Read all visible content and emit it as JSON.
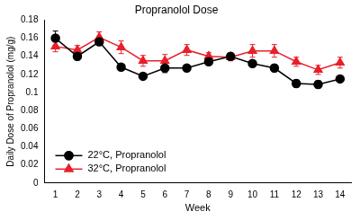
{
  "chart_data": {
    "type": "line",
    "title": "Propranolol Dose",
    "x_label": "Week",
    "y_label": "Daily Dose of Propranolol (mg/g)",
    "categories": [
      "1",
      "2",
      "3",
      "4",
      "5",
      "6",
      "7",
      "8",
      "9",
      "10",
      "11",
      "12",
      "13",
      "14"
    ],
    "series": [
      {
        "name": "22°C, Propranolol",
        "color": "#000000",
        "marker": "circle",
        "line_style": "solid",
        "values": [
          0.16,
          0.14,
          0.156,
          0.128,
          0.118,
          0.127,
          0.127,
          0.134,
          0.14,
          0.132,
          0.127,
          0.11,
          0.109,
          0.115
        ],
        "errors": [
          0.008,
          0.004,
          0.004,
          0.003,
          0.003,
          0.005,
          0.003,
          0.003,
          0.003,
          0.003,
          0.004,
          0.004,
          0.004,
          0.003
        ]
      },
      {
        "name": "32°C, Propranolol",
        "color": "#e8202a",
        "marker": "triangle",
        "line_style": "solid",
        "values": [
          0.151,
          0.147,
          0.161,
          0.15,
          0.135,
          0.135,
          0.147,
          0.14,
          0.139,
          0.146,
          0.146,
          0.134,
          0.125,
          0.133
        ],
        "errors": [
          0.006,
          0.005,
          0.006,
          0.007,
          0.006,
          0.007,
          0.006,
          0.004,
          0.004,
          0.007,
          0.007,
          0.005,
          0.005,
          0.006
        ]
      }
    ],
    "ylim": [
      0,
      0.18
    ],
    "yticks": [
      0,
      0.02,
      0.04,
      0.06,
      0.08,
      0.1,
      0.12,
      0.14,
      0.16,
      0.18
    ],
    "grid": false,
    "legend": "lower left"
  }
}
